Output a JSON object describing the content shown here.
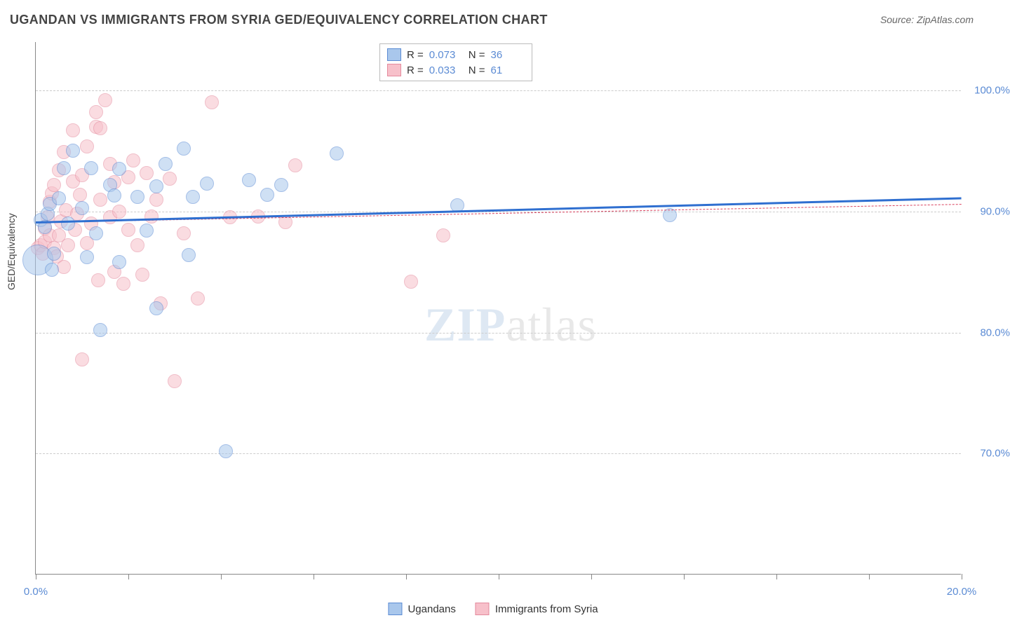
{
  "title": "UGANDAN VS IMMIGRANTS FROM SYRIA GED/EQUIVALENCY CORRELATION CHART",
  "source": "Source: ZipAtlas.com",
  "y_axis_label": "GED/Equivalency",
  "watermark_bold": "ZIP",
  "watermark_light": "atlas",
  "chart": {
    "type": "scatter",
    "xlim": [
      0,
      20
    ],
    "ylim": [
      60,
      104
    ],
    "x_ticks": [
      0,
      2,
      4,
      6,
      8,
      10,
      12,
      14,
      16,
      18,
      20
    ],
    "x_tick_labels_shown": {
      "0": "0.0%",
      "20": "20.0%"
    },
    "y_grid": [
      70,
      80,
      90,
      100
    ],
    "y_tick_labels": {
      "70": "70.0%",
      "80": "80.0%",
      "90": "90.0%",
      "100": "100.0%"
    },
    "background_color": "#ffffff",
    "grid_color": "#cccccc",
    "axis_color": "#888888",
    "tick_label_color": "#5b8bd4",
    "point_radius": 10,
    "point_opacity": 0.55
  },
  "series": [
    {
      "id": "ugandans",
      "label": "Ugandans",
      "fill": "#a9c7ec",
      "stroke": "#5b8bd4",
      "trend_color": "#2f6fd0",
      "trend_width": 3,
      "trend_dash": "none",
      "R": "0.073",
      "N": "36",
      "trend": {
        "x1": 0,
        "y1": 89.2,
        "x2": 20,
        "y2": 91.2
      },
      "points": [
        [
          0.05,
          86.0,
          22
        ],
        [
          0.1,
          89.3
        ],
        [
          0.2,
          88.7
        ],
        [
          0.25,
          89.8
        ],
        [
          0.3,
          90.6
        ],
        [
          0.35,
          85.2
        ],
        [
          0.5,
          91.1
        ],
        [
          0.6,
          93.6
        ],
        [
          0.7,
          89.0
        ],
        [
          0.8,
          95.0
        ],
        [
          1.0,
          90.3
        ],
        [
          1.1,
          86.2
        ],
        [
          1.2,
          93.6
        ],
        [
          1.3,
          88.2
        ],
        [
          1.4,
          80.2
        ],
        [
          1.6,
          92.2
        ],
        [
          1.7,
          91.3
        ],
        [
          1.8,
          85.8
        ],
        [
          1.8,
          93.5
        ],
        [
          2.2,
          91.2
        ],
        [
          2.4,
          88.4
        ],
        [
          2.6,
          92.1
        ],
        [
          2.6,
          82.0
        ],
        [
          2.8,
          93.9
        ],
        [
          3.2,
          95.2
        ],
        [
          3.3,
          86.4
        ],
        [
          3.4,
          91.2
        ],
        [
          3.7,
          92.3
        ],
        [
          4.1,
          70.2
        ],
        [
          4.6,
          92.6
        ],
        [
          5.0,
          91.4
        ],
        [
          5.3,
          92.2
        ],
        [
          6.5,
          94.8
        ],
        [
          9.1,
          90.5
        ],
        [
          13.7,
          89.7
        ],
        [
          0.4,
          86.5
        ]
      ]
    },
    {
      "id": "syria",
      "label": "Immigrants from Syria",
      "fill": "#f7c0ca",
      "stroke": "#e48a9d",
      "trend_color": "#d9415e",
      "trend_width": 1,
      "trend_dash": "4,4",
      "R": "0.033",
      "N": "61",
      "trend": {
        "x1": 0,
        "y1": 89.1,
        "x2": 20,
        "y2": 90.6
      },
      "points": [
        [
          0.05,
          87.0
        ],
        [
          0.1,
          87.2
        ],
        [
          0.15,
          86.5
        ],
        [
          0.2,
          87.5
        ],
        [
          0.2,
          88.6
        ],
        [
          0.25,
          89.5
        ],
        [
          0.3,
          90.8
        ],
        [
          0.3,
          88.0
        ],
        [
          0.35,
          91.5
        ],
        [
          0.4,
          87.0
        ],
        [
          0.4,
          92.2
        ],
        [
          0.45,
          86.3
        ],
        [
          0.5,
          93.4
        ],
        [
          0.5,
          88.0
        ],
        [
          0.55,
          89.2
        ],
        [
          0.6,
          94.9
        ],
        [
          0.6,
          85.4
        ],
        [
          0.65,
          90.1
        ],
        [
          0.7,
          87.2
        ],
        [
          0.8,
          96.7
        ],
        [
          0.8,
          92.5
        ],
        [
          0.85,
          88.5
        ],
        [
          0.9,
          89.8
        ],
        [
          0.95,
          91.4
        ],
        [
          1.0,
          93.0
        ],
        [
          1.0,
          77.8
        ],
        [
          1.1,
          87.4
        ],
        [
          1.1,
          95.4
        ],
        [
          1.2,
          89.0
        ],
        [
          1.3,
          98.2
        ],
        [
          1.3,
          97.0
        ],
        [
          1.35,
          84.3
        ],
        [
          1.4,
          91.0
        ],
        [
          1.4,
          96.9
        ],
        [
          1.5,
          99.2
        ],
        [
          1.6,
          89.5
        ],
        [
          1.6,
          93.9
        ],
        [
          1.7,
          92.4
        ],
        [
          1.7,
          85.0
        ],
        [
          1.8,
          90.0
        ],
        [
          1.9,
          84.0
        ],
        [
          2.0,
          88.5
        ],
        [
          2.0,
          92.8
        ],
        [
          2.1,
          94.2
        ],
        [
          2.2,
          87.2
        ],
        [
          2.3,
          84.8
        ],
        [
          2.4,
          93.2
        ],
        [
          2.5,
          89.6
        ],
        [
          2.6,
          91.0
        ],
        [
          2.7,
          82.4
        ],
        [
          2.9,
          92.7
        ],
        [
          3.0,
          76.0
        ],
        [
          3.2,
          88.2
        ],
        [
          3.5,
          82.8
        ],
        [
          3.8,
          99.0
        ],
        [
          4.2,
          89.5
        ],
        [
          4.8,
          89.6
        ],
        [
          5.4,
          89.1
        ],
        [
          5.6,
          93.8
        ],
        [
          8.1,
          84.2
        ],
        [
          8.8,
          88.0
        ]
      ]
    }
  ],
  "stats_legend": {
    "r_label": "R =",
    "n_label": "N ="
  },
  "bottom_legend_labels": [
    "Ugandans",
    "Immigrants from Syria"
  ]
}
